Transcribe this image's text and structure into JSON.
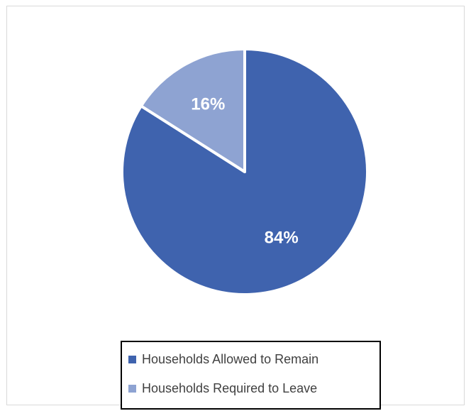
{
  "chart_data": {
    "type": "pie",
    "title": "",
    "series": [
      {
        "values": [
          84,
          16
        ],
        "labels": [
          "84%",
          "16%"
        ],
        "categories": [
          "Households Allowed to Remain",
          "Households Required to Leave"
        ],
        "colors": [
          "#3F63AE",
          "#8EA3D2"
        ]
      }
    ],
    "start_angle_deg": 0,
    "direction": "clockwise",
    "legend": "bottom"
  }
}
